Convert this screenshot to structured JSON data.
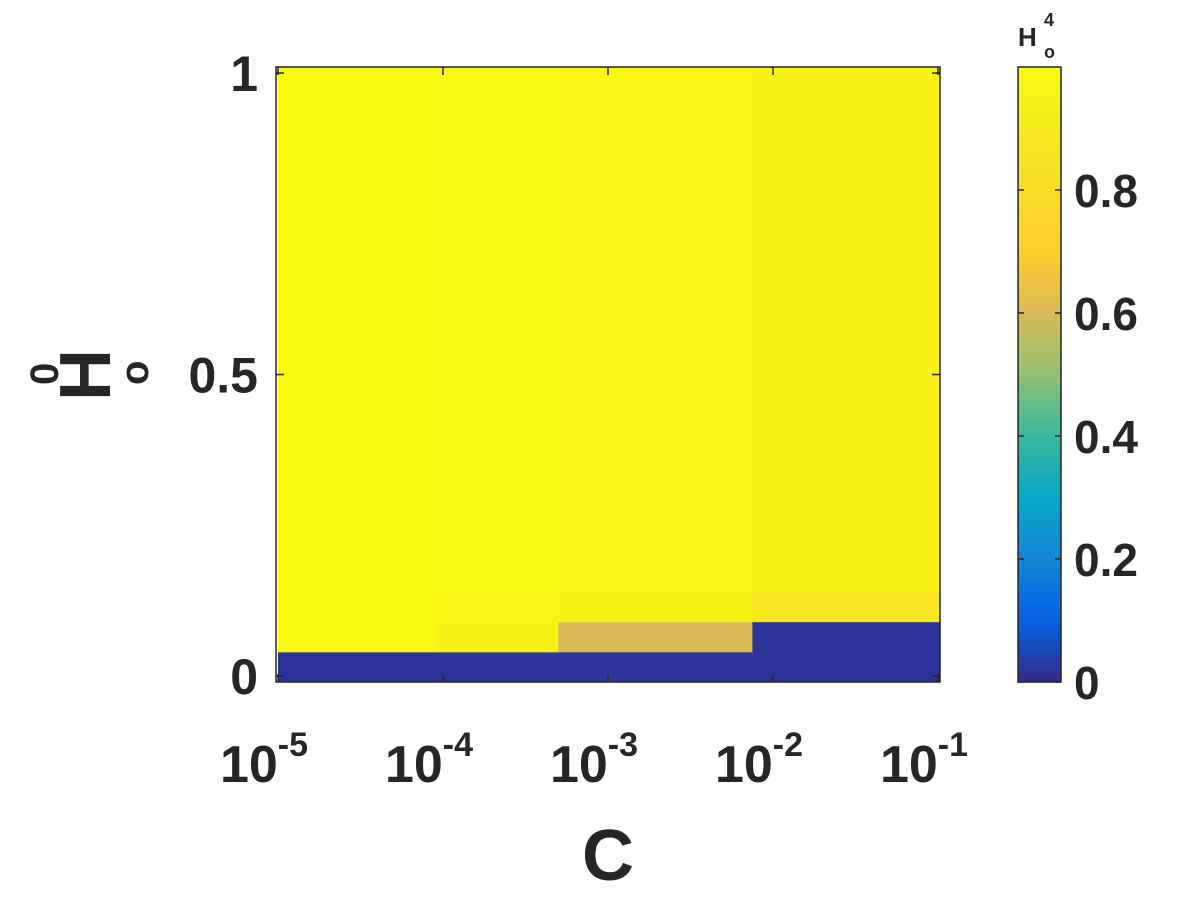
{
  "chart_data": {
    "type": "heatmap",
    "title": "",
    "xlabel": "C",
    "ylabel": {
      "base": "H",
      "sub": "o",
      "sup": "0"
    },
    "x_scale": "log",
    "x_bin_edges": [
      1e-05,
      9e-05,
      0.0005,
      0.0075,
      0.2
    ],
    "x_ticks": [
      {
        "value": 1e-05,
        "base": "10",
        "exp": "-5"
      },
      {
        "value": 0.0001,
        "base": "10",
        "exp": "-4"
      },
      {
        "value": 0.001,
        "base": "10",
        "exp": "-3"
      },
      {
        "value": 0.01,
        "base": "10",
        "exp": "-2"
      },
      {
        "value": 0.1,
        "base": "10",
        "exp": "-1"
      }
    ],
    "y_scale": "linear",
    "ylim": [
      -0.01,
      1.01
    ],
    "y_bin_edges": [
      -0.01,
      0.04,
      0.09,
      0.14,
      1.01
    ],
    "y_ticks": [
      {
        "value": 0,
        "label": "0"
      },
      {
        "value": 0.5,
        "label": "0.5"
      },
      {
        "value": 1,
        "label": "1"
      }
    ],
    "values": [
      [
        0.02,
        0.02,
        0.02,
        0.02
      ],
      [
        0.99,
        0.95,
        0.6,
        0.02
      ],
      [
        0.99,
        0.97,
        0.95,
        0.88
      ],
      [
        0.99,
        0.98,
        0.97,
        0.95
      ]
    ],
    "colorbar": {
      "label": {
        "base": "H",
        "sub": "o",
        "sup": "4"
      },
      "range": [
        0,
        1
      ],
      "ticks": [
        {
          "value": 0,
          "label": "0"
        },
        {
          "value": 0.2,
          "label": "0.2"
        },
        {
          "value": 0.4,
          "label": "0.4"
        },
        {
          "value": 0.6,
          "label": "0.6"
        },
        {
          "value": 0.8,
          "label": "0.8"
        }
      ]
    }
  }
}
